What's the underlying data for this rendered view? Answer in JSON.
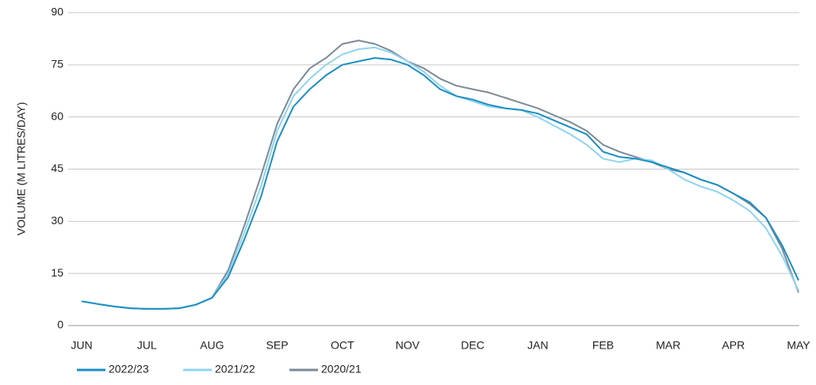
{
  "chart_data": {
    "type": "line",
    "y_label": "VOLUME (M LITRES/DAY)",
    "categories": [
      "JUN",
      null,
      null,
      null,
      "JUL",
      null,
      null,
      null,
      "AUG",
      null,
      null,
      null,
      "SEP",
      null,
      null,
      null,
      "OCT",
      null,
      null,
      null,
      "NOV",
      null,
      null,
      null,
      "DEC",
      null,
      null,
      null,
      "JAN",
      null,
      null,
      null,
      "FEB",
      null,
      null,
      null,
      "MAR",
      null,
      null,
      null,
      "APR",
      null,
      null,
      null,
      "MAY"
    ],
    "series": [
      {
        "name": "2022/23",
        "color": "#1b8ec2",
        "values": [
          7,
          6.2,
          5.5,
          5.0,
          4.8,
          4.8,
          5.0,
          6.0,
          8,
          14,
          25,
          37,
          53,
          63,
          68,
          72,
          75,
          76,
          77,
          76.5,
          75,
          72,
          68,
          66,
          65,
          63.5,
          62.5,
          62,
          61,
          59,
          57,
          55,
          50,
          48.5,
          48,
          47,
          45.5,
          44,
          42,
          40.5,
          38,
          35.5,
          31,
          23,
          13
        ]
      },
      {
        "name": "2021/22",
        "color": "#8fd3ef",
        "values": [
          7,
          6.2,
          5.5,
          5.0,
          4.8,
          4.8,
          5.0,
          6.0,
          8,
          15,
          27,
          40,
          56,
          66,
          71,
          75,
          78,
          79.5,
          80,
          78.5,
          76,
          73,
          69,
          66,
          64.5,
          63,
          62.5,
          62,
          60,
          57.5,
          55,
          52,
          48,
          47,
          48,
          47.5,
          45,
          42,
          40,
          38.5,
          36,
          33,
          28,
          20,
          10
        ]
      },
      {
        "name": "2020/21",
        "color": "#7b8a96",
        "values": [
          7,
          6.2,
          5.5,
          5.0,
          4.8,
          4.8,
          5.0,
          6.0,
          8,
          16,
          29,
          43,
          58,
          68,
          74,
          77,
          81,
          82,
          81,
          79,
          76,
          74,
          71,
          69,
          68,
          67,
          65.5,
          64,
          62.5,
          60.5,
          58.5,
          56,
          52,
          50,
          48.5,
          47,
          45,
          44,
          42,
          40.5,
          38,
          35,
          31,
          22,
          9.5
        ]
      }
    ],
    "ylim": [
      0,
      90
    ],
    "yticks": [
      0,
      15,
      30,
      45,
      60,
      75,
      90
    ],
    "grid": true,
    "legend": "bottom-left"
  }
}
